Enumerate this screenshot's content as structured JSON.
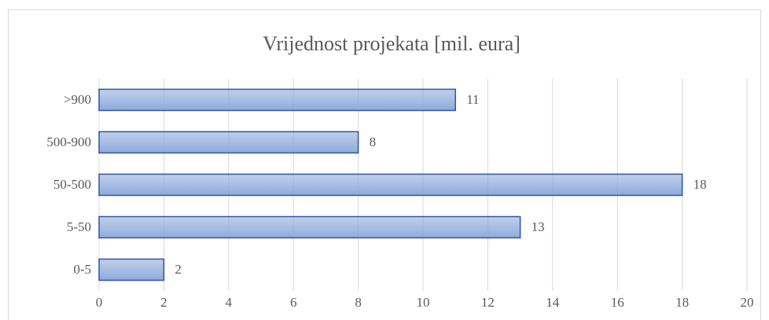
{
  "chart_data": {
    "type": "bar",
    "orientation": "horizontal",
    "title": "Vrijednost projekata [mil. eura]",
    "categories": [
      "0-5",
      "5-50",
      "50-500",
      "500-900",
      ">900"
    ],
    "values": [
      2,
      13,
      18,
      8,
      11
    ],
    "color": "#8eaadb",
    "edge_color": "#2f55a4",
    "xlim": [
      0,
      20
    ],
    "xticks": [
      0,
      2,
      4,
      6,
      8,
      10,
      12,
      14,
      16,
      18,
      20
    ],
    "grid": true
  }
}
